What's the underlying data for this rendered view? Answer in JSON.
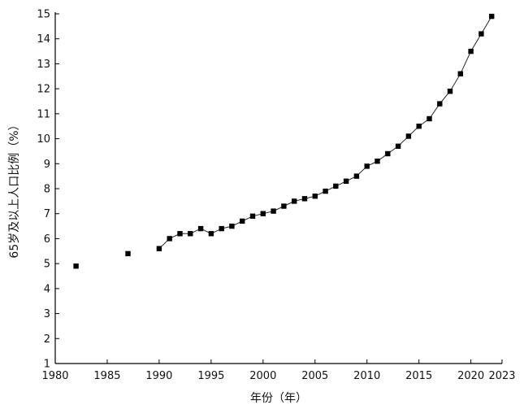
{
  "chart_data": {
    "type": "line",
    "title": "",
    "xlabel": "年份（年）",
    "ylabel": "65岁及以上人口比例（%）",
    "xlim": [
      1980,
      2023
    ],
    "ylim": [
      1,
      15
    ],
    "xticks": [
      1980,
      1985,
      1990,
      1995,
      2000,
      2005,
      2010,
      2015,
      2020,
      2023
    ],
    "yticks": [
      1,
      2,
      3,
      4,
      5,
      6,
      7,
      8,
      9,
      10,
      11,
      12,
      13,
      14,
      15
    ],
    "grid": false,
    "series": [
      {
        "x": [
          1982,
          1987,
          1990,
          1991,
          1992,
          1993,
          1994,
          1995,
          1996,
          1997,
          1998,
          1999,
          2000,
          2001,
          2002,
          2003,
          2004,
          2005,
          2006,
          2007,
          2008,
          2009,
          2010,
          2011,
          2012,
          2013,
          2014,
          2015,
          2016,
          2017,
          2018,
          2019,
          2020,
          2021,
          2022
        ],
        "values": [
          4.9,
          5.4,
          5.6,
          6.0,
          6.2,
          6.2,
          6.4,
          6.2,
          6.4,
          6.5,
          6.7,
          6.9,
          7.0,
          7.1,
          7.3,
          7.5,
          7.6,
          7.7,
          7.9,
          8.1,
          8.3,
          8.5,
          8.9,
          9.1,
          9.4,
          9.7,
          10.1,
          10.5,
          10.8,
          11.4,
          11.9,
          12.6,
          13.5,
          14.2,
          14.9
        ],
        "connected_from": 1990
      }
    ]
  }
}
